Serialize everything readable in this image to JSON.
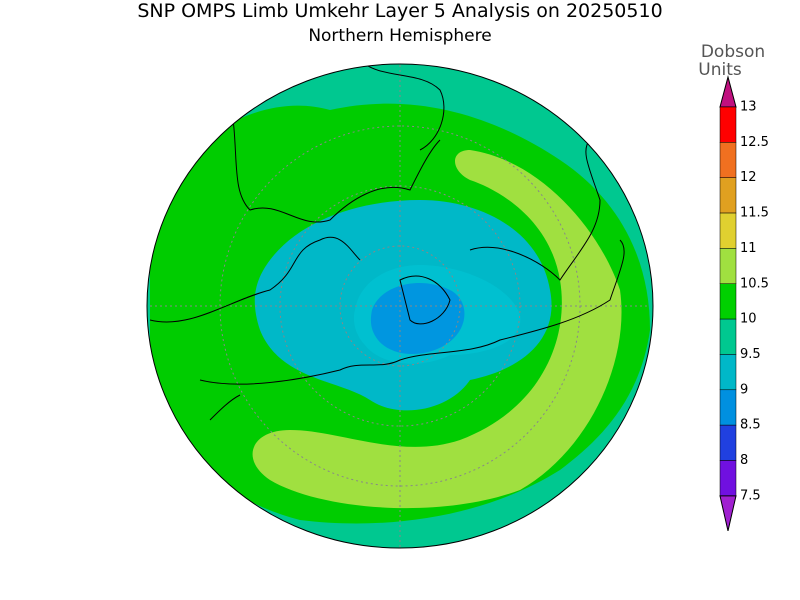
{
  "title": "SNP OMPS Limb Umkehr Layer 5 Analysis on 20250510",
  "subtitle": "Northern Hemisphere",
  "colorbar": {
    "unit_lines": [
      "Dobson",
      "Units"
    ],
    "ticks": [
      13,
      12.5,
      12,
      11.5,
      11,
      10.5,
      10,
      9.5,
      9,
      8.5,
      8,
      7.5
    ],
    "bin_colors": [
      "#ff0000",
      "#f07020",
      "#e0a020",
      "#e0d030",
      "#a0e040",
      "#00d000",
      "#00c890",
      "#00b8c8",
      "#0090e0",
      "#2040e0",
      "#7010e0"
    ],
    "over_color": "#c0107f",
    "under_color": "#a020d0"
  }
}
